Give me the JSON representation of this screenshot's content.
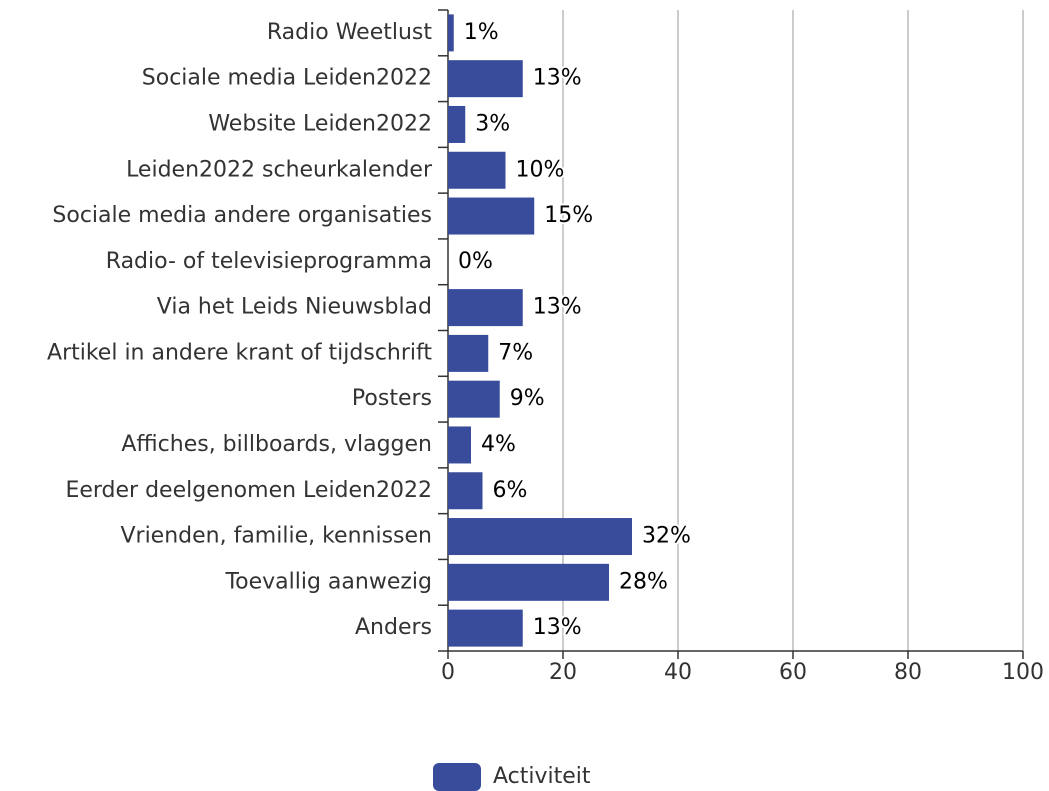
{
  "chart_data": {
    "type": "bar",
    "orientation": "horizontal",
    "categories": [
      "Radio Weetlust",
      "Sociale media Leiden2022",
      "Website Leiden2022",
      "Leiden2022 scheurkalender",
      "Sociale media andere organisaties",
      "Radio- of televisieprogramma",
      "Via het Leids Nieuwsblad",
      "Artikel in andere krant of tijdschrift",
      "Posters",
      "Affiches, billboards, vlaggen",
      "Eerder deelgenomen Leiden2022",
      "Vrienden, familie, kennissen",
      "Toevallig aanwezig",
      "Anders"
    ],
    "series": [
      {
        "name": "Activiteit",
        "color": "#384c9b",
        "values": [
          1,
          13,
          3,
          10,
          15,
          0,
          13,
          7,
          9,
          4,
          6,
          32,
          28,
          13
        ],
        "value_labels": [
          "1%",
          "13%",
          "3%",
          "10%",
          "15%",
          "0%",
          "13%",
          "7%",
          "9%",
          "4%",
          "6%",
          "32%",
          "28%",
          "13%"
        ]
      }
    ],
    "xlim": [
      0,
      100
    ],
    "xticks": [
      0,
      20,
      40,
      60,
      80,
      100
    ],
    "grid": true,
    "legend": "bottom"
  }
}
